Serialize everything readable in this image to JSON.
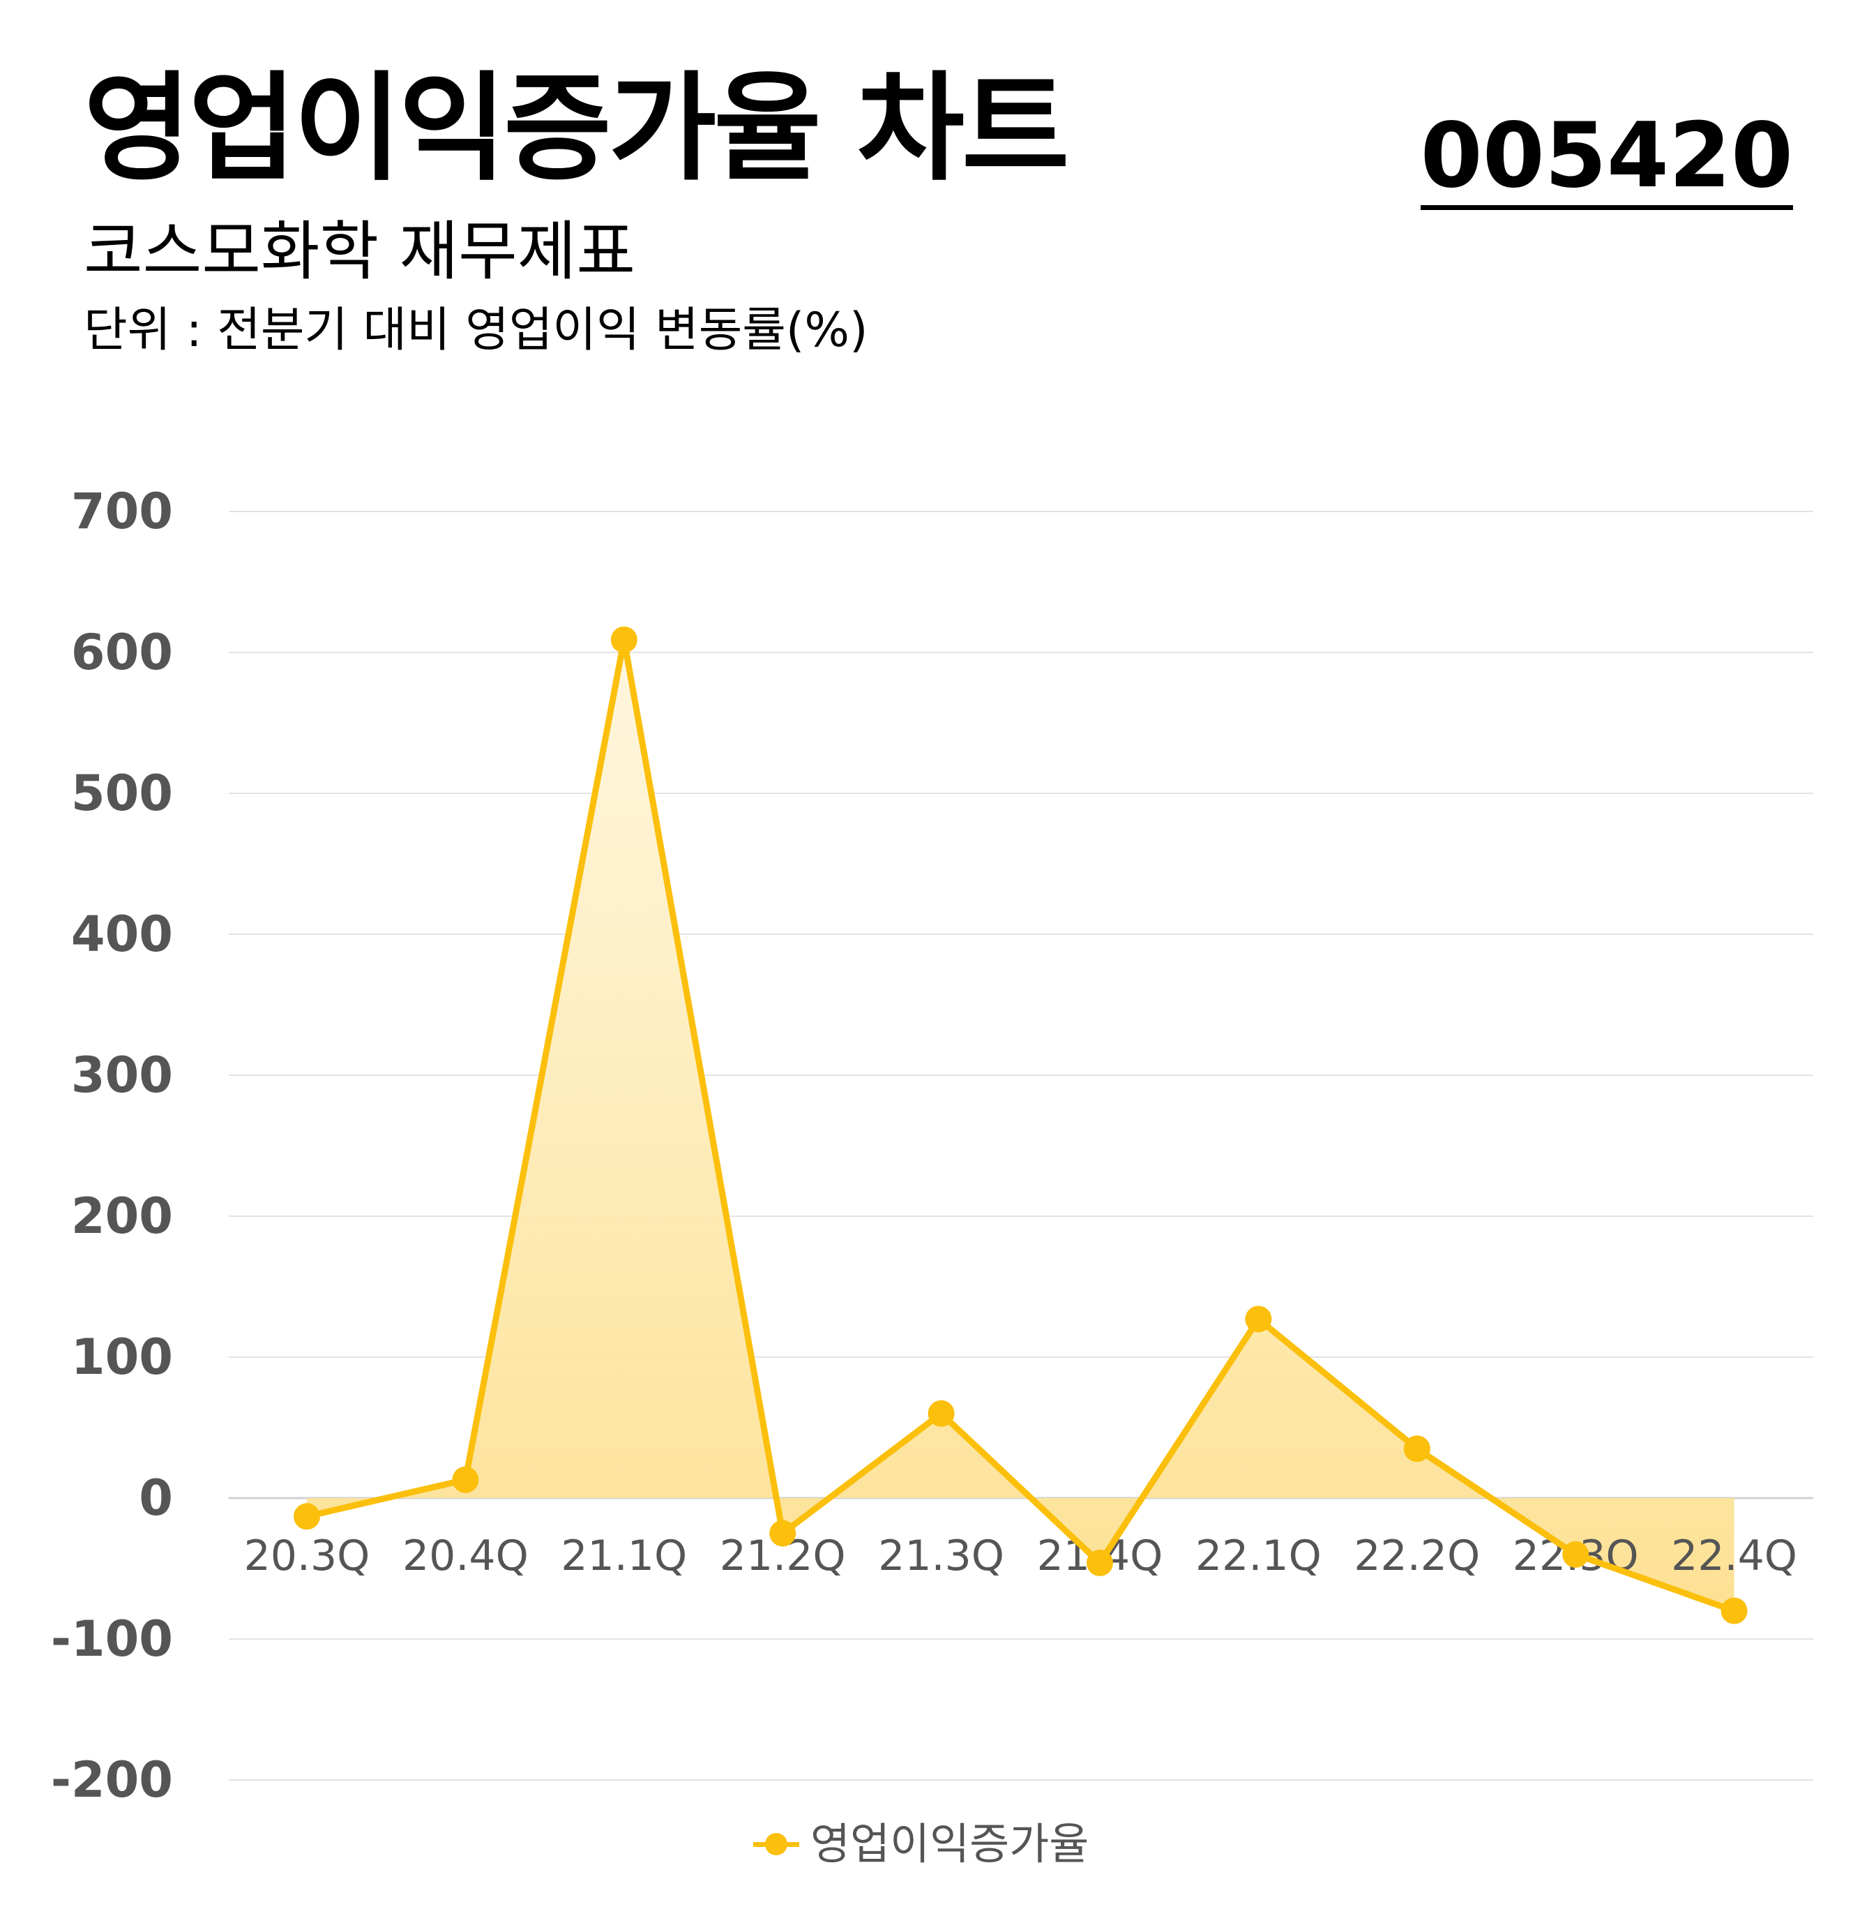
{
  "header": {
    "title": "영업이익증가율 차트",
    "code": "005420",
    "subtitle": "코스모화학 재무제표",
    "unit": "단위 : 전분기 대비 영업이익 변동률(%)"
  },
  "colors": {
    "line": "#FBBF0C",
    "fill_top": "#FEF6DE",
    "fill_bottom": "#FDE08F",
    "grid": "#E3E3E3",
    "y_tick_text": "#555555",
    "x_tick_text": "#555555"
  },
  "chart_data": {
    "type": "area",
    "categories": [
      "20.3Q",
      "20.4Q",
      "21.1Q",
      "21.2Q",
      "21.3Q",
      "21.4Q",
      "22.1Q",
      "22.2Q",
      "22.3Q",
      "22.4Q"
    ],
    "series": [
      {
        "name": "영업이익증가율",
        "values": [
          -13,
          13,
          609,
          -25,
          60,
          -46,
          127,
          35,
          -40,
          -80
        ]
      }
    ],
    "ylim": [
      -200,
      700
    ],
    "yticks": [
      700,
      600,
      500,
      400,
      300,
      200,
      100,
      0,
      -100,
      -200
    ],
    "grid": true,
    "legend": "bottom-center"
  }
}
